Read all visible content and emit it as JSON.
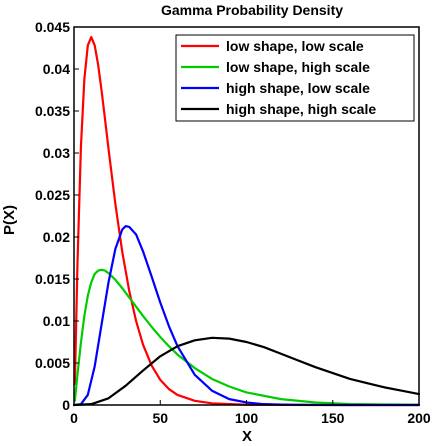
{
  "chart_data": {
    "type": "line",
    "title": "Gamma Probability Density",
    "xlabel": "X",
    "ylabel": "P(X)",
    "xlim": [
      0,
      200
    ],
    "ylim": [
      0,
      0.045
    ],
    "x_ticks": [
      "0",
      "50",
      "100",
      "150",
      "200"
    ],
    "y_ticks": [
      "0",
      "0.005",
      "0.01",
      "0.015",
      "0.02",
      "0.025",
      "0.03",
      "0.035",
      "0.04",
      "0.045"
    ],
    "grid": false,
    "legend_position": "top-right",
    "series": [
      {
        "name": "low shape, low scale",
        "color": "#ff0000",
        "x": [
          0.5,
          2,
          4,
          6,
          8,
          10,
          12,
          14,
          16,
          18,
          20,
          24,
          28,
          32,
          36,
          40,
          45,
          50,
          55,
          60,
          70,
          80,
          90,
          100,
          120,
          140,
          160,
          200
        ],
        "y": [
          0.0025,
          0.0167,
          0.0307,
          0.0388,
          0.0428,
          0.0438,
          0.0428,
          0.0405,
          0.0374,
          0.034,
          0.0305,
          0.0239,
          0.0182,
          0.0136,
          0.01,
          0.0072,
          0.0047,
          0.003,
          0.0019,
          0.0012,
          0.0005,
          0.0002,
          0.0001,
          3e-05,
          1e-05,
          0.0,
          0.0,
          0.0
        ]
      },
      {
        "name": "low shape, high scale",
        "color": "#00cc00",
        "x": [
          0.5,
          2,
          4,
          6,
          8,
          10,
          12,
          14,
          16,
          18,
          20,
          24,
          28,
          32,
          36,
          40,
          45,
          50,
          55,
          60,
          70,
          80,
          90,
          100,
          120,
          140,
          160,
          180,
          200
        ],
        "y": [
          0.0005,
          0.0036,
          0.0074,
          0.0106,
          0.013,
          0.0146,
          0.0156,
          0.016,
          0.0161,
          0.016,
          0.0157,
          0.0149,
          0.0139,
          0.0128,
          0.0117,
          0.0106,
          0.0093,
          0.0081,
          0.007,
          0.006,
          0.0044,
          0.0031,
          0.0022,
          0.0015,
          0.0007,
          0.0003,
          0.0001,
          6e-05,
          3e-05
        ]
      },
      {
        "name": "high shape, low scale",
        "color": "#0000ff",
        "x": [
          0,
          4,
          8,
          12,
          16,
          20,
          24,
          28,
          30,
          32,
          36,
          40,
          45,
          50,
          55,
          60,
          70,
          80,
          90,
          100,
          110,
          120,
          140,
          160,
          180,
          200
        ],
        "y": [
          0.0,
          0.0001,
          0.0012,
          0.0046,
          0.0096,
          0.0146,
          0.0186,
          0.0209,
          0.0213,
          0.0212,
          0.0203,
          0.0183,
          0.0153,
          0.0122,
          0.0094,
          0.007,
          0.0036,
          0.0017,
          0.0007,
          0.0003,
          0.0001,
          5e-05,
          1e-05,
          0.0,
          0.0,
          0.0
        ]
      },
      {
        "name": "high shape, high scale",
        "color": "#000000",
        "x": [
          0,
          10,
          20,
          30,
          40,
          50,
          60,
          70,
          80,
          90,
          100,
          110,
          120,
          130,
          140,
          150,
          160,
          170,
          180,
          190,
          200
        ],
        "y": [
          0.0,
          0.0001,
          0.0008,
          0.0023,
          0.0041,
          0.0058,
          0.007,
          0.0077,
          0.008,
          0.0079,
          0.0075,
          0.0069,
          0.0061,
          0.0053,
          0.0045,
          0.0038,
          0.0031,
          0.0026,
          0.0021,
          0.0017,
          0.0013
        ]
      }
    ]
  }
}
